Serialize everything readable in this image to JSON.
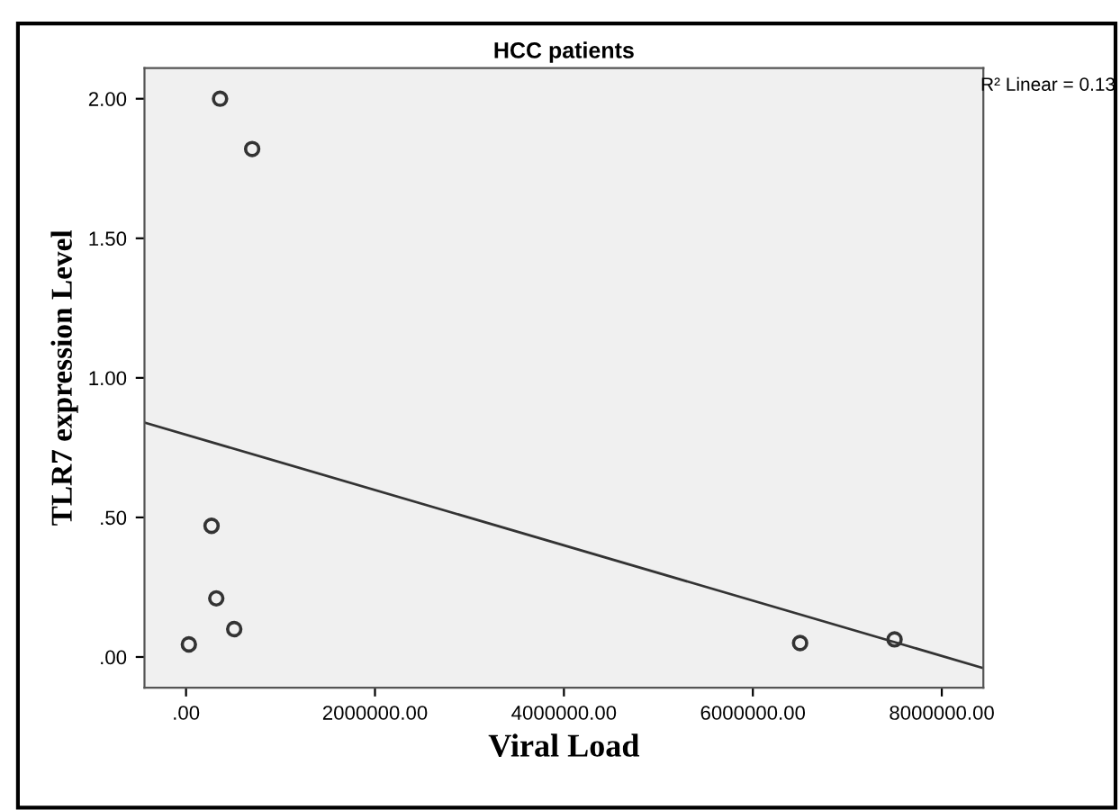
{
  "chart_data": {
    "type": "scatter",
    "title": "HCC patients",
    "xlabel": "Viral Load",
    "ylabel": "TLR7 expression Level",
    "annotations": [
      "R² Linear = 0.13"
    ],
    "series": [
      {
        "color": "#333333",
        "x": [
          360000,
          700000,
          270000,
          320000,
          510000,
          30000,
          6500000,
          7500000
        ],
        "values": [
          2.0,
          1.82,
          0.47,
          0.21,
          0.1,
          0.045,
          0.05,
          0.063
        ]
      },
      {
        "type": "line",
        "marker": "none",
        "color": "#333333",
        "x": [
          -440000,
          8440000
        ],
        "values": [
          0.84,
          -0.04
        ]
      }
    ],
    "marker": "circle",
    "grid": false,
    "legend": false,
    "xlim": [
      -440000,
      8440000
    ],
    "xticks": [
      {
        "value": 0,
        "label": ".00"
      },
      {
        "value": 2000000,
        "label": "2000000.00"
      },
      {
        "value": 4000000,
        "label": "4000000.00"
      },
      {
        "value": 6000000,
        "label": "6000000.00"
      },
      {
        "value": 8000000,
        "label": "8000000.00"
      }
    ],
    "ylim": [
      -0.11,
      2.11
    ],
    "yticks": [
      {
        "value": 0,
        "label": ".00"
      },
      {
        "value": 0.5,
        "label": ".50"
      },
      {
        "value": 1.0,
        "label": "1.00"
      },
      {
        "value": 1.5,
        "label": "1.50"
      },
      {
        "value": 2.0,
        "label": "2.00"
      }
    ]
  }
}
